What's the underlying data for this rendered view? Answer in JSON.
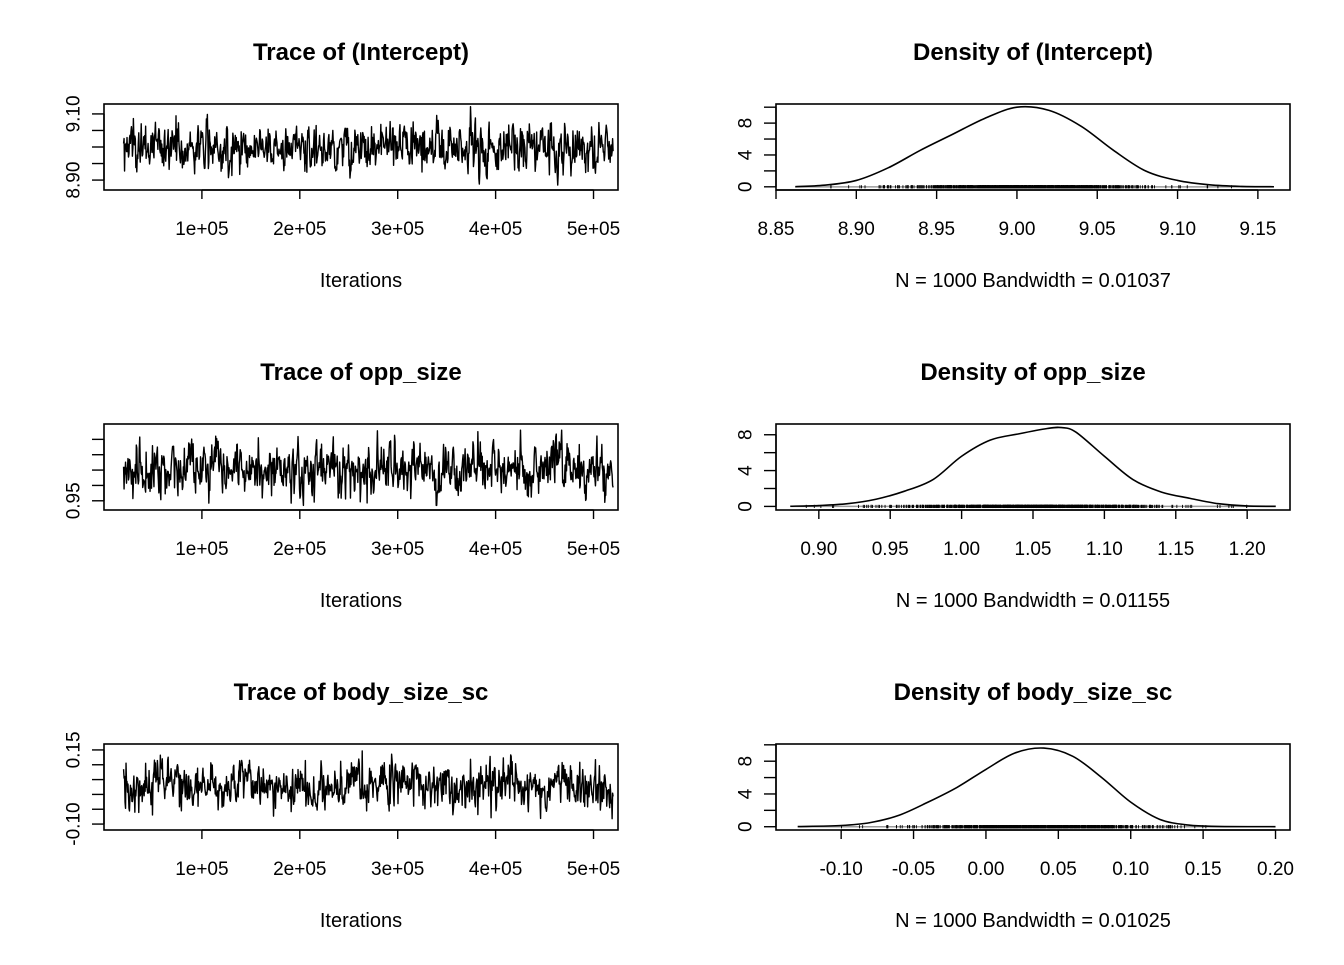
{
  "chart_data": [
    {
      "type": "line",
      "title": "Trace of (Intercept)",
      "xlabel": "Iterations",
      "ylabel": "",
      "xlim": [
        0,
        525000
      ],
      "ylim": [
        8.87,
        9.13
      ],
      "xticks": [
        100000,
        200000,
        300000,
        400000,
        500000
      ],
      "xtick_labels": [
        "1e+05",
        "2e+05",
        "3e+05",
        "4e+05",
        "5e+05"
      ],
      "yticks": [
        8.9,
        8.95,
        9.0,
        9.05,
        9.1
      ],
      "ytick_labels": [
        "8.90",
        "",
        "",
        "",
        "9.10"
      ],
      "series": [
        {
          "n": 1000,
          "x_start": 20000,
          "x_end": 520000,
          "mean": 9.0,
          "sd": 0.037,
          "min": 8.885,
          "max": 9.125
        }
      ],
      "color": "#000000"
    },
    {
      "type": "line",
      "title": "Density of (Intercept)",
      "xlabel": "N = 1000   Bandwidth = 0.01037",
      "ylabel": "",
      "xlim": [
        8.85,
        9.17
      ],
      "ylim": [
        -0.4,
        10.4
      ],
      "xticks": [
        8.85,
        8.9,
        8.95,
        9.0,
        9.05,
        9.1,
        9.15
      ],
      "xtick_labels": [
        "8.85",
        "8.90",
        "8.95",
        "9.00",
        "9.05",
        "9.10",
        "9.15"
      ],
      "yticks": [
        0,
        2,
        4,
        6,
        8,
        10
      ],
      "ytick_labels": [
        "0",
        "",
        "4",
        "",
        "8",
        ""
      ],
      "x": [
        8.862,
        8.88,
        8.9,
        8.92,
        8.94,
        8.96,
        8.98,
        9.0,
        9.02,
        9.04,
        9.06,
        9.08,
        9.1,
        9.12,
        9.14,
        9.16
      ],
      "y": [
        0.02,
        0.2,
        0.8,
        2.4,
        4.6,
        6.6,
        8.6,
        10.0,
        9.6,
        7.6,
        4.6,
        2.0,
        0.8,
        0.25,
        0.05,
        0.01
      ],
      "rug": {
        "n": 1000,
        "mean": 9.0,
        "sd": 0.037
      },
      "color": "#000000"
    },
    {
      "type": "line",
      "title": "Trace of opp_size",
      "xlabel": "Iterations",
      "ylabel": "",
      "xlim": [
        0,
        525000
      ],
      "ylim": [
        0.92,
        1.2
      ],
      "xticks": [
        100000,
        200000,
        300000,
        400000,
        500000
      ],
      "xtick_labels": [
        "1e+05",
        "2e+05",
        "3e+05",
        "4e+05",
        "5e+05"
      ],
      "yticks": [
        0.95,
        1.0,
        1.05,
        1.1,
        1.15
      ],
      "ytick_labels": [
        "0.95",
        "",
        "",
        "",
        ""
      ],
      "series": [
        {
          "n": 1000,
          "x_start": 20000,
          "x_end": 520000,
          "mean": 1.05,
          "sd": 0.045,
          "min": 0.935,
          "max": 1.18
        }
      ],
      "color": "#000000"
    },
    {
      "type": "line",
      "title": "Density of opp_size",
      "xlabel": "N = 1000   Bandwidth = 0.01155",
      "ylabel": "",
      "xlim": [
        0.87,
        1.23
      ],
      "ylim": [
        -0.4,
        9.2
      ],
      "xticks": [
        0.9,
        0.95,
        1.0,
        1.05,
        1.1,
        1.15,
        1.2
      ],
      "xtick_labels": [
        "0.90",
        "0.95",
        "1.00",
        "1.05",
        "1.10",
        "1.15",
        "1.20"
      ],
      "yticks": [
        0,
        2,
        4,
        6,
        8
      ],
      "ytick_labels": [
        "0",
        "",
        "4",
        "",
        "8"
      ],
      "x": [
        0.88,
        0.9,
        0.92,
        0.94,
        0.96,
        0.98,
        1.0,
        1.02,
        1.04,
        1.06,
        1.07,
        1.08,
        1.1,
        1.12,
        1.14,
        1.16,
        1.18,
        1.2,
        1.22
      ],
      "y": [
        0.02,
        0.1,
        0.3,
        0.8,
        1.7,
        3.0,
        5.6,
        7.4,
        8.1,
        8.7,
        8.8,
        8.3,
        5.6,
        3.0,
        1.6,
        0.9,
        0.3,
        0.05,
        0.01
      ],
      "rug": {
        "n": 1000,
        "mean": 1.05,
        "sd": 0.045
      },
      "color": "#000000"
    },
    {
      "type": "line",
      "title": "Trace of body_size_sc",
      "xlabel": "Iterations",
      "ylabel": "",
      "xlim": [
        0,
        525000
      ],
      "ylim": [
        -0.12,
        0.17
      ],
      "xticks": [
        100000,
        200000,
        300000,
        400000,
        500000
      ],
      "xtick_labels": [
        "1e+05",
        "2e+05",
        "3e+05",
        "4e+05",
        "5e+05"
      ],
      "yticks": [
        -0.1,
        -0.05,
        0.0,
        0.05,
        0.1,
        0.15
      ],
      "ytick_labels": [
        "-0.10",
        "",
        "",
        "",
        "",
        "0.15"
      ],
      "series": [
        {
          "n": 1000,
          "x_start": 20000,
          "x_end": 520000,
          "mean": 0.03,
          "sd": 0.04,
          "min": -0.115,
          "max": 0.16
        }
      ],
      "color": "#000000"
    },
    {
      "type": "line",
      "title": "Density of body_size_sc",
      "xlabel": "N = 1000   Bandwidth = 0.01025",
      "ylabel": "",
      "xlim": [
        -0.145,
        0.21
      ],
      "ylim": [
        -0.4,
        10.1
      ],
      "xticks": [
        -0.1,
        -0.05,
        0.0,
        0.05,
        0.1,
        0.15,
        0.2
      ],
      "xtick_labels": [
        "-0.10",
        "-0.05",
        "0.00",
        "0.05",
        "0.10",
        "0.15",
        "0.20"
      ],
      "yticks": [
        0,
        2,
        4,
        6,
        8,
        10
      ],
      "ytick_labels": [
        "0",
        "",
        "4",
        "",
        "8",
        ""
      ],
      "x": [
        -0.13,
        -0.1,
        -0.08,
        -0.06,
        -0.04,
        -0.02,
        0.0,
        0.02,
        0.04,
        0.06,
        0.08,
        0.1,
        0.12,
        0.14,
        0.16,
        0.2
      ],
      "y": [
        0.02,
        0.15,
        0.5,
        1.4,
        3.0,
        4.8,
        7.0,
        9.0,
        9.6,
        8.6,
        6.0,
        3.0,
        0.9,
        0.2,
        0.04,
        0.01
      ],
      "rug": {
        "n": 1000,
        "mean": 0.035,
        "sd": 0.04
      },
      "color": "#000000"
    }
  ]
}
